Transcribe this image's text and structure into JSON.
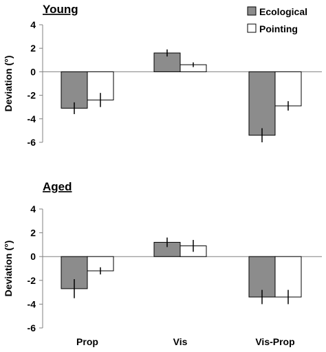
{
  "chart_data": [
    {
      "type": "bar",
      "title": "Young",
      "ylabel": "Deviation (°)",
      "xlabel": "",
      "ylim": [
        -6,
        4
      ],
      "yticks": [
        -6,
        -4,
        -2,
        0,
        2,
        4
      ],
      "categories": [
        "Prop",
        "Vis",
        "Vis-Prop"
      ],
      "show_category_labels": false,
      "legend": "top-right",
      "grid": false,
      "series": [
        {
          "name": "Ecological",
          "color": "#8c8c8c",
          "values": [
            -3.1,
            1.6,
            -5.4
          ],
          "errors": [
            0.5,
            0.3,
            0.6
          ]
        },
        {
          "name": "Pointing",
          "color": "#ffffff",
          "values": [
            -2.4,
            0.6,
            -2.9
          ],
          "errors": [
            0.6,
            0.2,
            0.4
          ]
        }
      ]
    },
    {
      "type": "bar",
      "title": "Aged",
      "ylabel": "Deviation (°)",
      "xlabel": "",
      "ylim": [
        -6,
        4
      ],
      "yticks": [
        -6,
        -4,
        -2,
        0,
        2,
        4
      ],
      "categories": [
        "Prop",
        "Vis",
        "Vis-Prop"
      ],
      "show_category_labels": true,
      "grid": false,
      "series": [
        {
          "name": "Ecological",
          "color": "#8c8c8c",
          "values": [
            -2.7,
            1.2,
            -3.4
          ],
          "errors": [
            0.8,
            0.4,
            0.6
          ]
        },
        {
          "name": "Pointing",
          "color": "#ffffff",
          "values": [
            -1.2,
            0.9,
            -3.4
          ],
          "errors": [
            0.3,
            0.5,
            0.6
          ]
        }
      ]
    }
  ]
}
